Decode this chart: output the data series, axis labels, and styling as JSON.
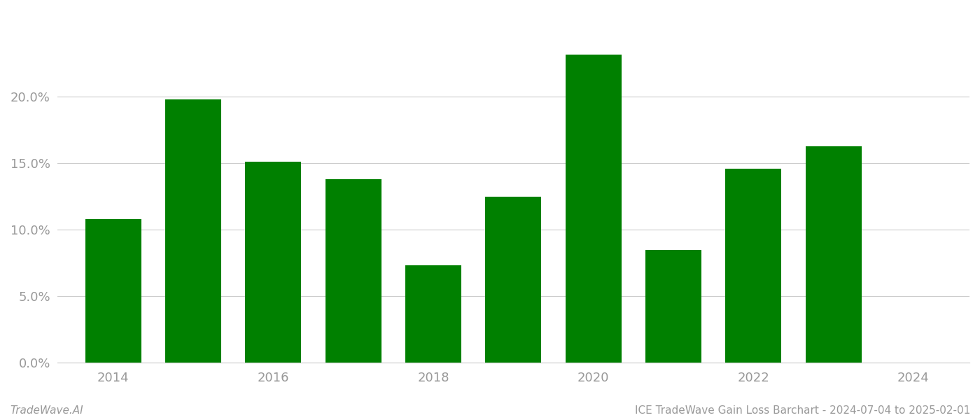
{
  "years": [
    2014,
    2015,
    2016,
    2017,
    2018,
    2019,
    2020,
    2021,
    2022,
    2023
  ],
  "values": [
    0.108,
    0.198,
    0.151,
    0.138,
    0.073,
    0.125,
    0.232,
    0.085,
    0.146,
    0.163
  ],
  "bar_color": "#008000",
  "background_color": "#ffffff",
  "grid_color": "#cccccc",
  "axis_label_color": "#999999",
  "ylim": [
    0,
    0.265
  ],
  "yticks": [
    0.0,
    0.05,
    0.1,
    0.15,
    0.2
  ],
  "xlim_min": 2013.3,
  "xlim_max": 2024.7,
  "label_years": [
    2014,
    2016,
    2018,
    2020,
    2022,
    2024
  ],
  "bar_width": 0.7,
  "footer_left": "TradeWave.AI",
  "footer_right": "ICE TradeWave Gain Loss Barchart - 2024-07-04 to 2025-02-01",
  "footer_color": "#999999",
  "footer_fontsize": 11
}
